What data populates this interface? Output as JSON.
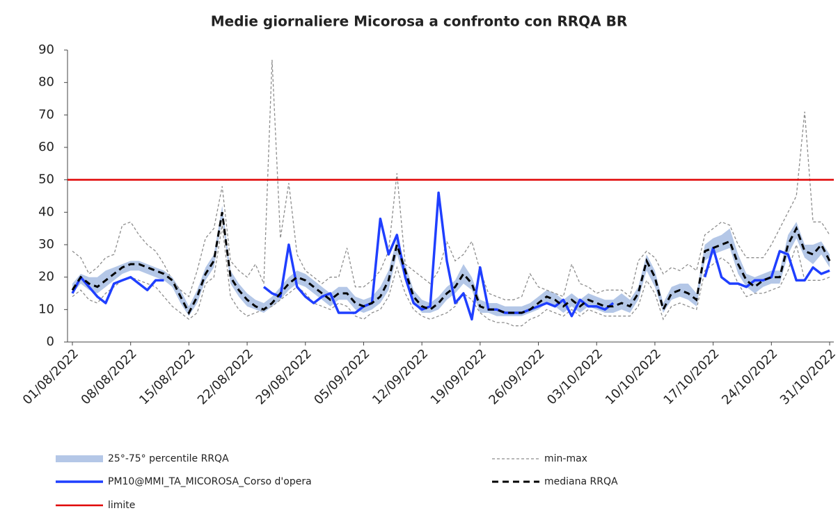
{
  "chart_data": {
    "type": "line",
    "title": "Medie giornaliere Micorosa a confronto con RRQA BR",
    "categories": [
      "01/08/2022",
      null,
      null,
      null,
      null,
      null,
      null,
      "08/08/2022",
      null,
      null,
      null,
      null,
      null,
      null,
      "15/08/2022",
      null,
      null,
      null,
      null,
      null,
      null,
      "22/08/2022",
      null,
      null,
      null,
      null,
      null,
      null,
      "29/08/2022",
      null,
      null,
      null,
      null,
      null,
      null,
      "05/09/2022",
      null,
      null,
      null,
      null,
      null,
      null,
      "12/09/2022",
      null,
      null,
      null,
      null,
      null,
      null,
      "19/09/2022",
      null,
      null,
      null,
      null,
      null,
      null,
      "26/09/2022",
      null,
      null,
      null,
      null,
      null,
      null,
      "03/10/2022",
      null,
      null,
      null,
      null,
      null,
      null,
      "10/10/2022",
      null,
      null,
      null,
      null,
      null,
      null,
      "17/10/2022",
      null,
      null,
      null,
      null,
      null,
      null,
      "24/10/2022",
      null,
      null,
      null,
      null,
      null,
      null,
      "31/10/2022"
    ],
    "ylim": [
      0,
      90
    ],
    "yticks": [
      0,
      10,
      20,
      30,
      40,
      50,
      60,
      70,
      80,
      90
    ],
    "series": [
      {
        "name": "25°-75° percentile RRQA",
        "color": "#b4c7e7",
        "high": [
          18,
          21,
          20,
          20,
          22,
          23,
          24,
          25,
          25,
          24,
          23,
          22,
          20,
          16,
          11,
          16,
          23,
          27,
          42,
          22,
          18,
          15,
          13,
          12,
          14,
          17,
          20,
          22,
          21,
          19,
          17,
          15,
          17,
          17,
          14,
          13,
          14,
          17,
          22,
          32,
          24,
          16,
          13,
          12,
          14,
          17,
          19,
          24,
          20,
          13,
          12,
          12,
          11,
          11,
          11,
          12,
          14,
          16,
          15,
          13,
          15,
          13,
          15,
          14,
          13,
          13,
          15,
          13,
          17,
          27,
          22,
          12,
          17,
          18,
          18,
          15,
          30,
          32,
          33,
          35,
          27,
          21,
          20,
          21,
          22,
          22,
          33,
          37,
          30,
          30,
          31,
          27
        ],
        "low": [
          15,
          18,
          16,
          15,
          17,
          19,
          21,
          22,
          22,
          21,
          20,
          19,
          17,
          12,
          8,
          12,
          19,
          23,
          38,
          18,
          14,
          11,
          10,
          9,
          11,
          13,
          16,
          18,
          17,
          15,
          13,
          11,
          13,
          13,
          10,
          9,
          10,
          12,
          16,
          27,
          19,
          12,
          9,
          9,
          10,
          13,
          15,
          18,
          16,
          9,
          9,
          8,
          8,
          8,
          8,
          9,
          10,
          12,
          11,
          9,
          11,
          9,
          11,
          10,
          9,
          9,
          10,
          9,
          13,
          22,
          17,
          9,
          13,
          14,
          13,
          11,
          25,
          27,
          28,
          29,
          21,
          17,
          15,
          17,
          18,
          18,
          27,
          32,
          26,
          24,
          27,
          23
        ]
      },
      {
        "name": "min-max",
        "color": "#8c8c8c",
        "max": [
          28,
          26,
          21,
          23,
          26,
          27,
          36,
          37,
          33,
          30,
          28,
          24,
          19,
          16,
          14,
          22,
          32,
          35,
          48,
          25,
          22,
          20,
          24,
          18,
          87,
          32,
          49,
          27,
          22,
          20,
          18,
          20,
          20,
          29,
          17,
          17,
          19,
          22,
          28,
          52,
          24,
          22,
          20,
          18,
          22,
          31,
          25,
          27,
          31,
          22,
          15,
          14,
          13,
          13,
          14,
          21,
          17,
          16,
          15,
          14,
          24,
          18,
          17,
          15,
          16,
          16,
          16,
          14,
          25,
          28,
          26,
          21,
          23,
          22,
          24,
          22,
          33,
          35,
          37,
          36,
          30,
          26,
          26,
          26,
          30,
          35,
          40,
          45,
          71,
          37,
          37,
          33
        ],
        "min": [
          14,
          16,
          13,
          12,
          15,
          17,
          19,
          20,
          19,
          18,
          17,
          14,
          11,
          9,
          7,
          9,
          18,
          20,
          36,
          14,
          10,
          8,
          9,
          10,
          11,
          13,
          15,
          17,
          15,
          12,
          11,
          10,
          12,
          11,
          8,
          7,
          9,
          10,
          14,
          23,
          15,
          10,
          8,
          7,
          8,
          9,
          11,
          15,
          13,
          9,
          7,
          6,
          6,
          5,
          5,
          7,
          8,
          10,
          9,
          8,
          10,
          8,
          10,
          9,
          8,
          8,
          8,
          8,
          11,
          19,
          15,
          7,
          11,
          12,
          11,
          10,
          22,
          24,
          26,
          24,
          18,
          14,
          15,
          15,
          16,
          17,
          22,
          30,
          19,
          19,
          19,
          20
        ]
      },
      {
        "name": "PM10@MMI_TA_MICOROSA_Corso d'opera",
        "color": "#1f3fff",
        "values": [
          15,
          20,
          17,
          14,
          12,
          18,
          19,
          20,
          18,
          16,
          19,
          19,
          null,
          null,
          null,
          null,
          null,
          null,
          null,
          null,
          null,
          null,
          null,
          17,
          15,
          14,
          30,
          17,
          14,
          12,
          14,
          15,
          9,
          9,
          9,
          11,
          12,
          38,
          27,
          33,
          20,
          12,
          10,
          11,
          46,
          25,
          12,
          15,
          7,
          23,
          10,
          10,
          9,
          9,
          9,
          10,
          11,
          12,
          11,
          13,
          8,
          13,
          11,
          11,
          10,
          12,
          null,
          null,
          null,
          null,
          null,
          null,
          null,
          null,
          null,
          null,
          20,
          29,
          20,
          18,
          18,
          17,
          19,
          19,
          20,
          28,
          27,
          19,
          19,
          23,
          21,
          22
        ]
      },
      {
        "name": "mediana RRQA",
        "color": "#000000",
        "values": [
          16,
          20,
          18,
          17,
          19,
          21,
          23,
          24,
          24,
          23,
          22,
          21,
          19,
          14,
          9,
          14,
          21,
          25,
          40,
          20,
          16,
          13,
          11,
          10,
          12,
          15,
          18,
          20,
          19,
          17,
          15,
          13,
          15,
          15,
          12,
          11,
          12,
          14,
          19,
          30,
          22,
          14,
          11,
          10,
          12,
          15,
          17,
          21,
          18,
          11,
          10,
          10,
          9,
          9,
          9,
          10,
          12,
          14,
          13,
          11,
          13,
          11,
          13,
          12,
          11,
          11,
          12,
          11,
          15,
          25,
          20,
          10,
          15,
          16,
          15,
          13,
          28,
          29,
          30,
          31,
          24,
          19,
          17,
          19,
          20,
          20,
          30,
          35,
          28,
          27,
          30,
          25
        ]
      },
      {
        "name": "limite",
        "color": "#e00000",
        "value": 50
      }
    ]
  }
}
